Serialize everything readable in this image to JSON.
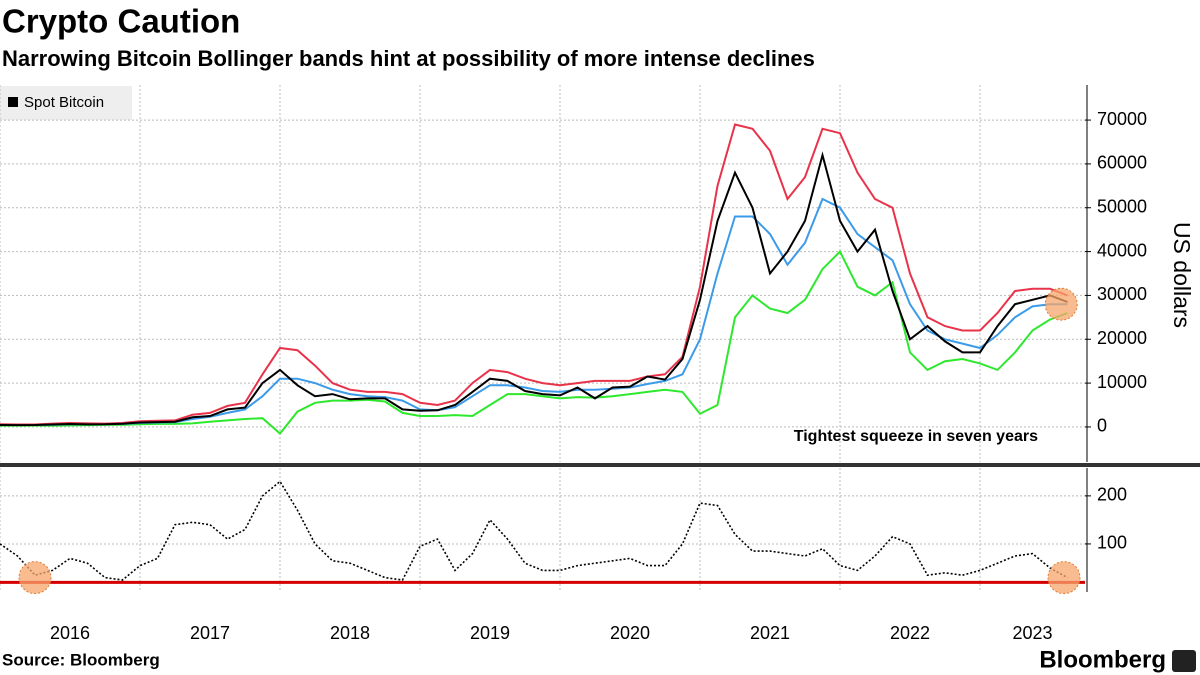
{
  "header": {
    "title": "Crypto Caution",
    "subtitle": "Narrowing Bitcoin Bollinger bands hint at possibility of more intense declines"
  },
  "footer": {
    "source": "Source: Bloomberg",
    "brand": "Bloomberg"
  },
  "chart_data": [
    {
      "type": "line",
      "y_label": "US dollars",
      "annotation": "Tightest squeeze in seven years",
      "x": [
        2016,
        2016.125,
        2016.25,
        2016.375,
        2016.5,
        2016.625,
        2016.75,
        2016.875,
        2017,
        2017.125,
        2017.25,
        2017.375,
        2017.5,
        2017.625,
        2017.75,
        2017.875,
        2018,
        2018.125,
        2018.25,
        2018.375,
        2018.5,
        2018.625,
        2018.75,
        2018.875,
        2019,
        2019.125,
        2019.25,
        2019.375,
        2019.5,
        2019.625,
        2019.75,
        2019.875,
        2020,
        2020.125,
        2020.25,
        2020.375,
        2020.5,
        2020.625,
        2020.75,
        2020.875,
        2021,
        2021.125,
        2021.25,
        2021.375,
        2021.5,
        2021.625,
        2021.75,
        2021.875,
        2022,
        2022.125,
        2022.25,
        2022.375,
        2022.5,
        2022.625,
        2022.75,
        2022.875,
        2023,
        2023.125,
        2023.25,
        2023.375,
        2023.5,
        2023.625
      ],
      "series": [
        {
          "name": "Spot Bitcoin",
          "color": "#000000",
          "values": [
            430,
            420,
            430,
            550,
            670,
            580,
            610,
            730,
            1000,
            1100,
            1200,
            2200,
            2500,
            4000,
            4400,
            10000,
            13000,
            9500,
            7000,
            7500,
            6300,
            6500,
            6500,
            4000,
            3700,
            3800,
            5000,
            8000,
            11000,
            10500,
            8200,
            7500,
            7200,
            9000,
            6500,
            9000,
            9200,
            11500,
            10800,
            15500,
            29000,
            47000,
            58000,
            50000,
            35000,
            40000,
            47000,
            62000,
            47000,
            40000,
            45000,
            31000,
            20000,
            23000,
            19500,
            17000,
            17000,
            23000,
            28000,
            29000,
            30000,
            28500
          ]
        },
        {
          "color": "#e8334a",
          "values": [
            600,
            550,
            550,
            750,
            900,
            800,
            750,
            900,
            1300,
            1400,
            1500,
            2800,
            3200,
            4800,
            5500,
            12000,
            18000,
            17500,
            14000,
            10000,
            8500,
            8000,
            8000,
            7500,
            5500,
            5000,
            6000,
            10000,
            13000,
            12500,
            11000,
            10000,
            9500,
            10000,
            10500,
            10500,
            10500,
            11500,
            12000,
            16000,
            32000,
            55000,
            69000,
            68000,
            63000,
            52000,
            57000,
            68000,
            67000,
            58000,
            52000,
            50000,
            35000,
            25000,
            23000,
            22000,
            22000,
            26000,
            31000,
            31500,
            31500,
            30000
          ]
        },
        {
          "color": "#3c9be8",
          "values": [
            450,
            430,
            440,
            520,
            620,
            600,
            610,
            700,
            900,
            1000,
            1100,
            1800,
            2300,
            3200,
            4000,
            7000,
            11000,
            11000,
            10000,
            8500,
            7500,
            7000,
            6800,
            6000,
            4000,
            3800,
            4500,
            7000,
            9500,
            9500,
            9000,
            8200,
            8000,
            8500,
            8500,
            8700,
            9000,
            9800,
            10500,
            12000,
            20000,
            35000,
            48000,
            48000,
            44000,
            37000,
            42000,
            52000,
            50000,
            44000,
            41000,
            38000,
            28000,
            22000,
            20000,
            19000,
            18000,
            21000,
            25000,
            27500,
            28000,
            28000
          ]
        },
        {
          "color": "#2ee82e",
          "values": [
            300,
            300,
            330,
            300,
            350,
            420,
            470,
            500,
            600,
            700,
            700,
            800,
            1200,
            1500,
            1800,
            2000,
            -1500,
            3500,
            5500,
            6000,
            6000,
            6200,
            5800,
            3200,
            2500,
            2500,
            2700,
            2500,
            5000,
            7500,
            7500,
            7000,
            6500,
            6800,
            6700,
            7000,
            7500,
            8000,
            8500,
            8000,
            3000,
            5000,
            25000,
            30000,
            27000,
            26000,
            29000,
            36000,
            40000,
            32000,
            30000,
            33000,
            17000,
            13000,
            15000,
            15500,
            14500,
            13000,
            17000,
            22000,
            24500,
            26000
          ]
        }
      ],
      "highlights": [
        {
          "x": 2023.58,
          "y": 28000
        }
      ],
      "xlim": [
        2016,
        2023.75
      ],
      "ylim": [
        -8000,
        78000
      ],
      "yticks": [
        0,
        10000,
        20000,
        30000,
        40000,
        50000,
        60000,
        70000
      ],
      "grid": true
    },
    {
      "type": "line",
      "x": [
        2016,
        2016.125,
        2016.25,
        2016.375,
        2016.5,
        2016.625,
        2016.75,
        2016.875,
        2017,
        2017.125,
        2017.25,
        2017.375,
        2017.5,
        2017.625,
        2017.75,
        2017.875,
        2018,
        2018.125,
        2018.25,
        2018.375,
        2018.5,
        2018.625,
        2018.75,
        2018.875,
        2019,
        2019.125,
        2019.25,
        2019.375,
        2019.5,
        2019.625,
        2019.75,
        2019.875,
        2020,
        2020.125,
        2020.25,
        2020.375,
        2020.5,
        2020.625,
        2020.75,
        2020.875,
        2021,
        2021.125,
        2021.25,
        2021.375,
        2021.5,
        2021.625,
        2021.75,
        2021.875,
        2022,
        2022.125,
        2022.25,
        2022.375,
        2022.5,
        2022.625,
        2022.75,
        2022.875,
        2023,
        2023.125,
        2023.25,
        2023.375,
        2023.5,
        2023.625
      ],
      "series": [
        {
          "color": "#000000",
          "values": [
            100,
            75,
            35,
            45,
            70,
            60,
            30,
            25,
            55,
            70,
            140,
            145,
            140,
            110,
            130,
            200,
            230,
            170,
            100,
            65,
            60,
            45,
            30,
            25,
            95,
            110,
            45,
            80,
            150,
            110,
            60,
            45,
            45,
            55,
            60,
            65,
            70,
            55,
            55,
            100,
            185,
            180,
            120,
            85,
            85,
            80,
            75,
            90,
            55,
            45,
            75,
            115,
            100,
            35,
            40,
            35,
            45,
            60,
            75,
            80,
            50,
            30
          ]
        }
      ],
      "reference_line": {
        "value": 20,
        "color": "#d40000"
      },
      "highlights": [
        {
          "x": 2016.25,
          "y": 30
        },
        {
          "x": 2023.6,
          "y": 30
        }
      ],
      "xlim": [
        2016,
        2023.75
      ],
      "ylim": [
        0,
        258
      ],
      "yticks": [
        100,
        200
      ],
      "xticks": [
        {
          "value": 2016,
          "label": "2016"
        },
        {
          "value": 2017,
          "label": "2017"
        },
        {
          "value": 2018,
          "label": "2018"
        },
        {
          "value": 2019,
          "label": "2019"
        },
        {
          "value": 2020,
          "label": "2020"
        },
        {
          "value": 2021,
          "label": "2021"
        },
        {
          "value": 2022,
          "label": "2022"
        },
        {
          "value": 2023,
          "label": "2023"
        }
      ],
      "grid": true
    }
  ]
}
